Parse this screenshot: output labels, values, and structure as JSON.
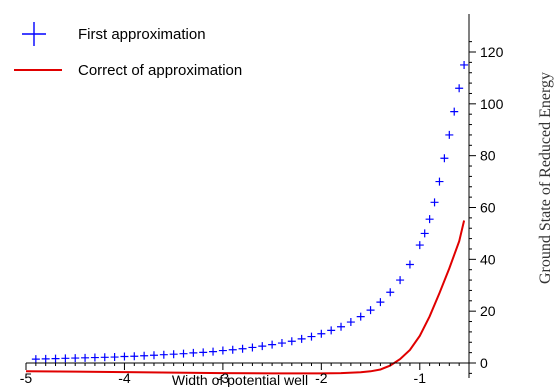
{
  "chart_data": {
    "type": "line",
    "xlabel": "Width of potential well",
    "ylabel": "Ground State of Reduced Energy",
    "xlim": [
      -5,
      -0.5
    ],
    "ylim": [
      -5,
      125
    ],
    "x_ticks": [
      -5,
      -4,
      -3,
      -2,
      -1
    ],
    "x_tick_labels": [
      "-5",
      "-4",
      "-3",
      "-2",
      "-1"
    ],
    "y_ticks": [
      0,
      20,
      40,
      60,
      80,
      100,
      120
    ],
    "y_tick_labels": [
      "0",
      "20",
      "40",
      "60",
      "80",
      "100",
      "120"
    ],
    "legend_position": "top-left",
    "series": [
      {
        "name": "First approximation",
        "style": "plus-markers",
        "color": "#0000ff",
        "x": [
          -4.9,
          -4.8,
          -4.7,
          -4.6,
          -4.5,
          -4.4,
          -4.3,
          -4.2,
          -4.1,
          -4.0,
          -3.9,
          -3.8,
          -3.7,
          -3.6,
          -3.5,
          -3.4,
          -3.3,
          -3.2,
          -3.1,
          -3.0,
          -2.9,
          -2.8,
          -2.7,
          -2.6,
          -2.5,
          -2.4,
          -2.3,
          -2.2,
          -2.1,
          -2.0,
          -1.9,
          -1.8,
          -1.7,
          -1.6,
          -1.5,
          -1.4,
          -1.3,
          -1.2,
          -1.1,
          -1.0,
          -0.95,
          -0.9,
          -0.85,
          -0.8,
          -0.75,
          -0.7,
          -0.65,
          -0.6,
          -0.55
        ],
        "y": [
          1.5,
          1.6,
          1.7,
          1.8,
          1.9,
          2.0,
          2.1,
          2.2,
          2.3,
          2.5,
          2.6,
          2.8,
          3.0,
          3.2,
          3.4,
          3.6,
          3.9,
          4.1,
          4.4,
          4.8,
          5.1,
          5.5,
          6.0,
          6.5,
          7.1,
          7.7,
          8.4,
          9.3,
          10.2,
          11.3,
          12.6,
          14.0,
          15.8,
          17.9,
          20.4,
          23.5,
          27.3,
          32.0,
          38.0,
          45.5,
          50.0,
          55.5,
          62.0,
          70.0,
          79.0,
          88.0,
          97.0,
          106.0,
          115.0
        ]
      },
      {
        "name": "Correct of approximation",
        "style": "line",
        "color": "#e00000",
        "x": [
          -5.0,
          -4.5,
          -4.0,
          -3.5,
          -3.0,
          -2.5,
          -2.0,
          -1.8,
          -1.6,
          -1.5,
          -1.4,
          -1.3,
          -1.2,
          -1.1,
          -1.0,
          -0.9,
          -0.8,
          -0.7,
          -0.6,
          -0.55
        ],
        "y": [
          -3.2,
          -3.3,
          -3.5,
          -3.7,
          -3.9,
          -4.0,
          -4.0,
          -3.9,
          -3.6,
          -3.2,
          -2.5,
          -1.0,
          1.5,
          5.0,
          10.5,
          18.0,
          27.0,
          36.5,
          47.0,
          55.0
        ]
      }
    ]
  }
}
